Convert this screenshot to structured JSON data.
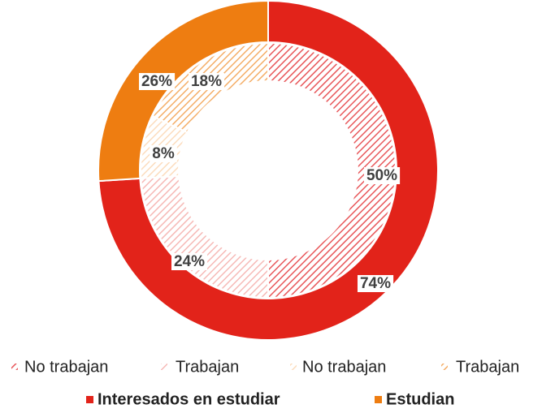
{
  "chart_data": {
    "type": "donut",
    "rings": [
      {
        "categories": [
          "Interesados en estudiar",
          "Estudian"
        ],
        "values": [
          74,
          26
        ],
        "value_labels": [
          "74%",
          "26%"
        ],
        "colors": [
          "#e2231a",
          "#ee7d11"
        ],
        "hatched": false
      },
      {
        "categories": [
          "No trabajan",
          "Trabajan",
          "No trabajan",
          "Trabajan"
        ],
        "values": [
          50,
          24,
          8,
          18
        ],
        "value_labels": [
          "50%",
          "24%",
          "8%",
          "18%"
        ],
        "colors": [
          "#e8575a",
          "#f6b9b6",
          "#fcdcbd",
          "#f4ad66"
        ],
        "hatched": true
      }
    ]
  }
}
